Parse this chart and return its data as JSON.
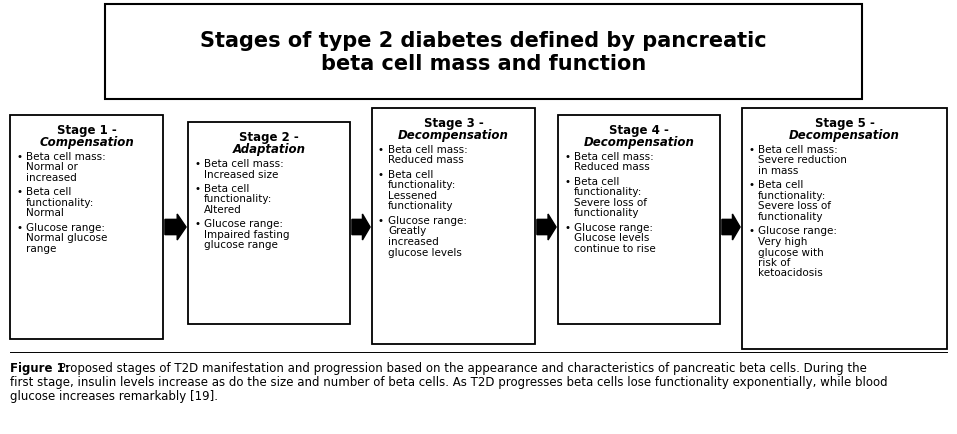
{
  "title": "Stages of type 2 diabetes defined by pancreatic\nbeta cell mass and function",
  "background_color": "#ffffff",
  "stages": [
    {
      "stage_line": "Stage 1 -",
      "sub_line": "Compensation",
      "bullets": [
        [
          "Beta cell mass:",
          "Normal or",
          "increased"
        ],
        [
          "Beta cell",
          "functionality:",
          "Normal"
        ],
        [
          "Glucose range:",
          "Normal glucose",
          "range"
        ]
      ]
    },
    {
      "stage_line": "Stage 2 -",
      "sub_line": "Adaptation",
      "bullets": [
        [
          "Beta cell mass:",
          "Increased size"
        ],
        [
          "Beta cell",
          "functionality:",
          "Altered"
        ],
        [
          "Glucose range:",
          "Impaired fasting",
          "glucose range"
        ]
      ]
    },
    {
      "stage_line": "Stage 3 -",
      "sub_line": "Decompensation",
      "bullets": [
        [
          "Beta cell mass:",
          "Reduced mass"
        ],
        [
          "Beta cell",
          "functionality:",
          "Lessened",
          "functionality"
        ],
        [
          "Glucose range:",
          "Greatly",
          "increased",
          "glucose levels"
        ]
      ]
    },
    {
      "stage_line": "Stage 4 -",
      "sub_line": "Decompensation",
      "bullets": [
        [
          "Beta cell mass:",
          "Reduced mass"
        ],
        [
          "Beta cell",
          "functionality:",
          "Severe loss of",
          "functionality"
        ],
        [
          "Glucose range:",
          "Glucose levels",
          "continue to rise"
        ]
      ]
    },
    {
      "stage_line": "Stage 5 -",
      "sub_line": "Decompensation",
      "bullets": [
        [
          "Beta cell mass:",
          "Severe reduction",
          "in mass"
        ],
        [
          "Beta cell",
          "functionality:",
          "Severe loss of",
          "functionality"
        ],
        [
          "Glucose range:",
          "Very high",
          "glucose with",
          "risk of",
          "ketoacidosis"
        ]
      ]
    }
  ],
  "caption_bold": "Figure 1:",
  "caption_rest": " Proposed stages of T2D manifestation and progression based on the appearance and characteristics of pancreatic beta cells. During the first stage, insulin levels increase as do the size and number of beta cells. As T2D progresses beta cells lose functionality exponentially, while blood glucose increases remarkably [19].",
  "box_edge_color": "#000000",
  "box_face_color": "#ffffff",
  "arrow_color": "#000000",
  "text_color": "#000000"
}
